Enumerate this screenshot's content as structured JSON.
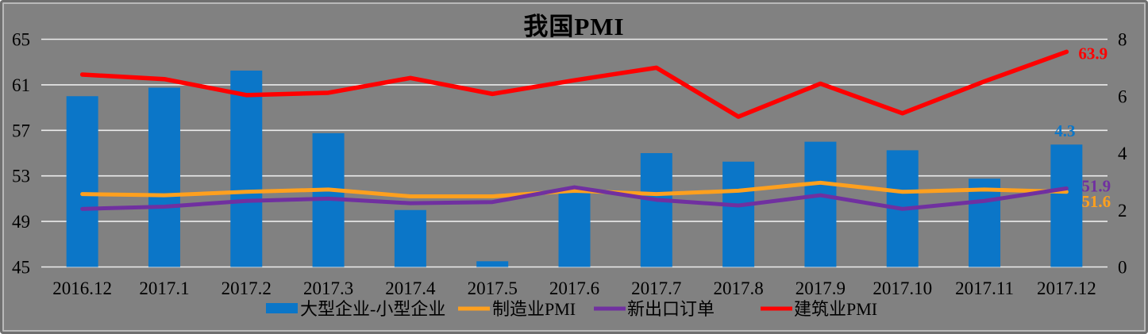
{
  "title": "我国PMI",
  "colors": {
    "background": "#818181",
    "gridline": "#ececec",
    "text": "#000000",
    "bar_blue": "#0b76c8",
    "manufacturing_orange": "#ffa01e",
    "export_purple": "#7030a0",
    "construction_red": "#ff0000",
    "frame_outer": "#6f6f6f",
    "frame_inner": "#b9b9b9"
  },
  "chart_data": {
    "type": "combo bar+line, dual axis",
    "title": "我国PMI",
    "categories": [
      "2016.12",
      "2017.1",
      "2017.2",
      "2017.3",
      "2017.4",
      "2017.5",
      "2017.6",
      "2017.7",
      "2017.8",
      "2017.9",
      "2017.10",
      "2017.11",
      "2017.12"
    ],
    "series": [
      {
        "name": "大型企业-小型企业",
        "type": "bar",
        "axis": "right",
        "color": "#0b76c8",
        "values": [
          6.0,
          6.3,
          6.9,
          4.7,
          2.0,
          0.2,
          2.6,
          4.0,
          3.7,
          4.4,
          4.1,
          3.1,
          4.3
        ],
        "end_label": "4.3"
      },
      {
        "name": "制造业PMI",
        "type": "line",
        "axis": "left",
        "color": "#ffa01e",
        "values": [
          51.4,
          51.3,
          51.6,
          51.8,
          51.2,
          51.2,
          51.7,
          51.4,
          51.7,
          52.4,
          51.6,
          51.8,
          51.6
        ],
        "end_label": "51.6"
      },
      {
        "name": "新出口订单",
        "type": "line",
        "axis": "left",
        "color": "#7030a0",
        "values": [
          50.1,
          50.3,
          50.8,
          51.0,
          50.6,
          50.7,
          52.0,
          50.9,
          50.4,
          51.3,
          50.1,
          50.8,
          51.9
        ],
        "end_label": "51.9"
      },
      {
        "name": "建筑业PMI",
        "type": "line",
        "axis": "left",
        "color": "#ff0000",
        "values": [
          61.9,
          61.5,
          60.1,
          60.3,
          61.6,
          60.2,
          61.4,
          62.5,
          58.2,
          61.1,
          58.5,
          61.3,
          63.9
        ],
        "end_label": "63.9"
      }
    ],
    "left_axis": {
      "min": 45,
      "max": 65,
      "ticks": [
        65,
        61,
        57,
        53,
        49,
        45
      ]
    },
    "right_axis": {
      "min": 0,
      "max": 8,
      "ticks": [
        8,
        6,
        4,
        2,
        0
      ]
    },
    "grid": "horizontal gridlines at left-axis ticks",
    "legend_position": "bottom"
  }
}
